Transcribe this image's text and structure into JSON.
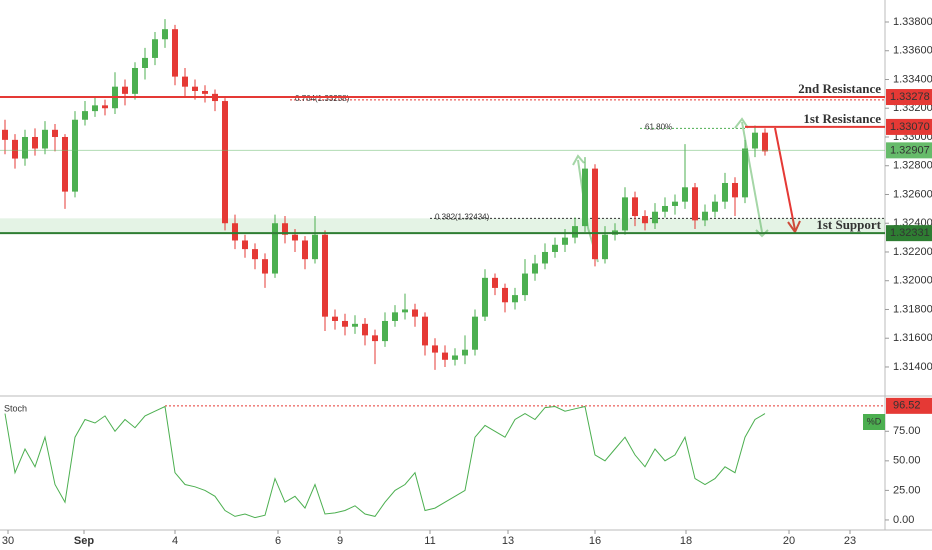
{
  "chart_data": [
    {
      "type": "candlestick",
      "open": [
        1.3305,
        1.3298,
        1.3285,
        1.33,
        1.3292,
        1.3305,
        1.33,
        1.3262,
        1.3312,
        1.3318,
        1.3322,
        1.332,
        1.3335,
        1.333,
        1.3348,
        1.3355,
        1.3368,
        1.3375,
        1.3342,
        1.3335,
        1.3332,
        1.333,
        1.3325,
        1.324,
        1.3228,
        1.3222,
        1.3215,
        1.3205,
        1.324,
        1.3232,
        1.3228,
        1.3215,
        1.3232,
        1.3175,
        1.3172,
        1.3168,
        1.317,
        1.3162,
        1.3158,
        1.3172,
        1.3178,
        1.318,
        1.3175,
        1.3155,
        1.315,
        1.3145,
        1.3148,
        1.3152,
        1.3175,
        1.3202,
        1.3195,
        1.3185,
        1.319,
        1.3205,
        1.3212,
        1.322,
        1.3225,
        1.323,
        1.3238,
        1.3278,
        1.3215,
        1.3232,
        1.3235,
        1.3258,
        1.3245,
        1.324,
        1.3248,
        1.3252,
        1.3255,
        1.3265,
        1.3242,
        1.3248,
        1.3255,
        1.3268,
        1.3258,
        1.3292,
        1.3303
      ],
      "high": [
        1.3312,
        1.3302,
        1.3305,
        1.3306,
        1.3311,
        1.3309,
        1.3302,
        1.3318,
        1.3325,
        1.3328,
        1.3326,
        1.3345,
        1.334,
        1.3352,
        1.3362,
        1.3373,
        1.3382,
        1.3378,
        1.3348,
        1.334,
        1.3336,
        1.3333,
        1.3327,
        1.3246,
        1.3232,
        1.3226,
        1.3219,
        1.3246,
        1.3245,
        1.3236,
        1.3231,
        1.3245,
        1.3235,
        1.318,
        1.3177,
        1.3176,
        1.3174,
        1.3166,
        1.3178,
        1.3183,
        1.3191,
        1.3184,
        1.3178,
        1.316,
        1.3155,
        1.3153,
        1.3162,
        1.318,
        1.3208,
        1.3205,
        1.3198,
        1.3195,
        1.3215,
        1.3218,
        1.3226,
        1.323,
        1.3236,
        1.3244,
        1.3286,
        1.3281,
        1.3238,
        1.324,
        1.3265,
        1.3262,
        1.3249,
        1.3254,
        1.3258,
        1.326,
        1.3295,
        1.3268,
        1.3253,
        1.326,
        1.3275,
        1.3272,
        1.3298,
        1.3308,
        1.3306
      ],
      "low": [
        1.3288,
        1.3278,
        1.328,
        1.3287,
        1.3288,
        1.329,
        1.325,
        1.3258,
        1.3308,
        1.3314,
        1.3315,
        1.3316,
        1.3322,
        1.3326,
        1.334,
        1.335,
        1.3362,
        1.3336,
        1.3328,
        1.3326,
        1.3324,
        1.3318,
        1.3235,
        1.3222,
        1.3216,
        1.3208,
        1.3195,
        1.3202,
        1.3226,
        1.322,
        1.3208,
        1.3212,
        1.3165,
        1.3166,
        1.3162,
        1.3163,
        1.3155,
        1.3142,
        1.3154,
        1.3168,
        1.3173,
        1.3168,
        1.3148,
        1.3138,
        1.314,
        1.3141,
        1.3142,
        1.3148,
        1.3172,
        1.319,
        1.3178,
        1.318,
        1.3186,
        1.32,
        1.3208,
        1.3216,
        1.322,
        1.3226,
        1.3234,
        1.321,
        1.3212,
        1.3228,
        1.3232,
        1.3238,
        1.3235,
        1.3236,
        1.3244,
        1.3246,
        1.325,
        1.3236,
        1.3238,
        1.3244,
        1.325,
        1.3245,
        1.3254,
        1.3286,
        1.3287
      ],
      "close": [
        1.3298,
        1.3285,
        1.33,
        1.3292,
        1.3305,
        1.33,
        1.3262,
        1.3312,
        1.3318,
        1.3322,
        1.332,
        1.3335,
        1.333,
        1.3348,
        1.3355,
        1.3368,
        1.3375,
        1.3342,
        1.3335,
        1.3332,
        1.333,
        1.3325,
        1.324,
        1.3228,
        1.3222,
        1.3215,
        1.3205,
        1.324,
        1.3232,
        1.3228,
        1.3215,
        1.3232,
        1.3175,
        1.3172,
        1.3168,
        1.317,
        1.3162,
        1.3158,
        1.3172,
        1.3178,
        1.318,
        1.3175,
        1.3155,
        1.315,
        1.3145,
        1.3148,
        1.3152,
        1.3175,
        1.3202,
        1.3195,
        1.3185,
        1.319,
        1.3205,
        1.3212,
        1.322,
        1.3225,
        1.323,
        1.3238,
        1.3278,
        1.3215,
        1.3232,
        1.3235,
        1.3258,
        1.3245,
        1.324,
        1.3248,
        1.3252,
        1.3255,
        1.3265,
        1.3242,
        1.3248,
        1.3255,
        1.3268,
        1.3258,
        1.3292,
        1.3303,
        1.329
      ],
      "up_color": "#4caf50",
      "down_color": "#e53935",
      "xlim": [
        -0.5,
        88
      ],
      "ylim": [
        1.31205,
        1.33953
      ],
      "xticks": [
        {
          "value": 0.3,
          "label": "30"
        },
        {
          "value": 7.9,
          "label": "Sep"
        },
        {
          "value": 17,
          "label": "4"
        },
        {
          "value": 27.3,
          "label": "6"
        },
        {
          "value": 33.5,
          "label": "9"
        },
        {
          "value": 42.5,
          "label": "11"
        },
        {
          "value": 50.3,
          "label": "13"
        },
        {
          "value": 59,
          "label": "16"
        },
        {
          "value": 68.1,
          "label": "18"
        },
        {
          "value": 78.4,
          "label": "20"
        },
        {
          "value": 84.5,
          "label": "23"
        }
      ],
      "yticks": [
        {
          "value": 1.314,
          "label": "1.31400"
        },
        {
          "value": 1.316,
          "label": "1.31600"
        },
        {
          "value": 1.318,
          "label": "1.31800"
        },
        {
          "value": 1.32,
          "label": "1.32000"
        },
        {
          "value": 1.322,
          "label": "1.32200"
        },
        {
          "value": 1.324,
          "label": "1.32400"
        },
        {
          "value": 1.326,
          "label": "1.32600"
        },
        {
          "value": 1.328,
          "label": "1.32800"
        },
        {
          "value": 1.33,
          "label": "1.33000"
        },
        {
          "value": 1.332,
          "label": "1.33200"
        },
        {
          "value": 1.334,
          "label": "1.33400"
        },
        {
          "value": 1.336,
          "label": "1.33600"
        },
        {
          "value": 1.338,
          "label": "1.33800"
        }
      ],
      "levels": [
        {
          "name": "2nd Resistance",
          "value": 1.33278,
          "label": "1.33278",
          "color": "#e53935"
        },
        {
          "name": "1st Resistance",
          "value": 1.3307,
          "label": "1.33070",
          "color": "#e53935"
        },
        {
          "value": 1.32907,
          "label": "1.32907",
          "color": "#66bb6a"
        },
        {
          "name": "1st Support",
          "value": 1.32331,
          "label": "1.32331",
          "color": "#2e7d32"
        }
      ],
      "fib": [
        {
          "label": "0.764(1.33258)",
          "value": 1.33258,
          "color": "#e53935"
        },
        {
          "label": "61.80%",
          "value": 1.3306,
          "color": "#4caf50"
        },
        {
          "label": "0.382(1.32434)",
          "value": 1.32434,
          "color": "#333333"
        }
      ]
    },
    {
      "type": "line",
      "title": "Stoch",
      "series": [
        {
          "name": "%D",
          "color": "#4caf50",
          "values": [
            90,
            40,
            60,
            45,
            70,
            30,
            15,
            70,
            85,
            82,
            88,
            75,
            85,
            78,
            88,
            92,
            96,
            40,
            30,
            28,
            25,
            20,
            8,
            3,
            5,
            2,
            4,
            35,
            15,
            20,
            10,
            30,
            5,
            6,
            8,
            12,
            5,
            3,
            15,
            25,
            30,
            40,
            8,
            10,
            15,
            20,
            25,
            70,
            80,
            75,
            70,
            85,
            90,
            85,
            95,
            96,
            92,
            94,
            96,
            55,
            50,
            60,
            70,
            55,
            45,
            60,
            50,
            55,
            70,
            35,
            30,
            35,
            45,
            40,
            70,
            85,
            90
          ]
        }
      ],
      "xlim": [
        -0.5,
        88
      ],
      "ylim": [
        -8.5,
        104
      ],
      "yticks": [
        {
          "value": 0,
          "label": "0.00"
        },
        {
          "value": 25,
          "label": "25.00"
        },
        {
          "value": 50,
          "label": "50.00"
        },
        {
          "value": 75,
          "label": "75.00"
        }
      ],
      "level": {
        "value": 96.52,
        "label": "96.52",
        "color": "#e53935"
      }
    }
  ]
}
